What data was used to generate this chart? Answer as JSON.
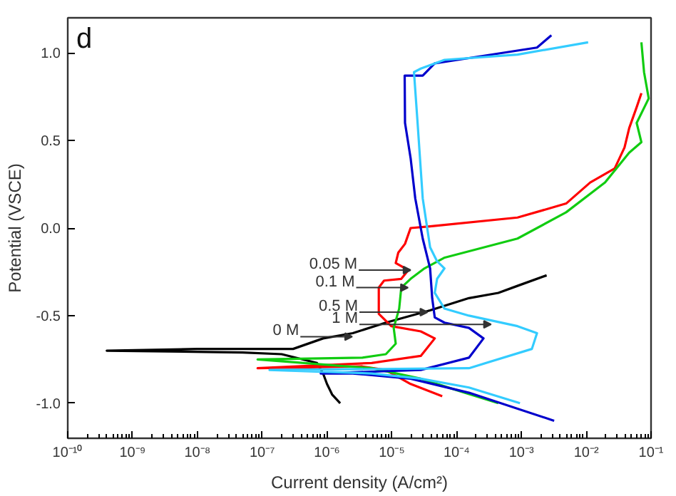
{
  "chart_data": {
    "type": "line",
    "xlabel": "Current density (A/cm²)",
    "ylabel": "Potential (VSCE)",
    "log": "x",
    "grid": false,
    "xlim": [
      1e-10,
      0.1
    ],
    "ylim": [
      -1.2,
      1.2
    ],
    "xticks": [
      {
        "value": 1e-10,
        "label": "10⁻¹⁰"
      },
      {
        "value": 1e-09,
        "label": "10⁻⁹"
      },
      {
        "value": 1e-08,
        "label": "10⁻⁸"
      },
      {
        "value": 1e-07,
        "label": "10⁻⁷"
      },
      {
        "value": 1e-06,
        "label": "10⁻⁶"
      },
      {
        "value": 1e-05,
        "label": "10⁻⁵"
      },
      {
        "value": 0.0001,
        "label": "10⁻⁴"
      },
      {
        "value": 0.001,
        "label": "10⁻³"
      },
      {
        "value": 0.01,
        "label": "10⁻²"
      },
      {
        "value": 0.1,
        "label": "10⁻¹"
      }
    ],
    "yticks": [
      {
        "value": -1.0,
        "label": "-1.0"
      },
      {
        "value": -0.5,
        "label": "-0.5"
      },
      {
        "value": 0.0,
        "label": "0.0"
      },
      {
        "value": 0.5,
        "label": "0.5"
      },
      {
        "value": 1.0,
        "label": "1.0"
      }
    ],
    "series": [
      {
        "color": "#000000",
        "x": [
          1.6e-06,
          1.2e-06,
          1e-06,
          8.7e-07,
          7e-07,
          2e-07,
          5e-08,
          4e-10,
          1e-08,
          3e-07,
          8.7e-07,
          2.5e-06,
          8.1e-06,
          3.9e-05,
          0.000155,
          0.00044,
          0.00087,
          0.00245
        ],
        "values": [
          -1.0,
          -0.95,
          -0.89,
          -0.83,
          -0.77,
          -0.72,
          -0.71,
          -0.7,
          -0.69,
          -0.69,
          -0.63,
          -0.6,
          -0.54,
          -0.47,
          -0.4,
          -0.37,
          -0.33,
          -0.27
        ]
      },
      {
        "color": "#ff0000",
        "x": [
          6e-05,
          1.95e-05,
          8e-06,
          3.5e-06,
          8.5e-08,
          4.9e-06,
          2.8e-05,
          4.6e-05,
          2.8e-05,
          9.8e-06,
          6.3e-06,
          6.3e-06,
          7.6e-06,
          1.4e-05,
          1.8e-05,
          1.15e-05,
          1.26e-05,
          1.6e-05,
          1.95e-05,
          3.9e-05,
          0.00087,
          0.0049,
          0.0115,
          0.0275,
          0.039,
          0.046,
          0.06,
          0.071
        ],
        "values": [
          -0.96,
          -0.89,
          -0.81,
          -0.79,
          -0.8,
          -0.77,
          -0.73,
          -0.63,
          -0.59,
          -0.56,
          -0.49,
          -0.34,
          -0.3,
          -0.29,
          -0.24,
          -0.2,
          -0.14,
          -0.09,
          0.0,
          0.01,
          0.06,
          0.14,
          0.26,
          0.34,
          0.46,
          0.57,
          0.69,
          0.77
        ]
      },
      {
        "color": "#11cc11",
        "x": [
          0.00044,
          0.00011,
          2.8e-05,
          4.9e-06,
          8.5e-08,
          3.5e-06,
          8.1e-06,
          1.15e-05,
          1.07e-05,
          1.3e-05,
          1.4e-05,
          1.95e-05,
          3.2e-05,
          6.4e-05,
          0.00087,
          0.0049,
          0.0195,
          0.046,
          0.071,
          0.06,
          0.092,
          0.078,
          0.071
        ],
        "values": [
          -1.0,
          -0.93,
          -0.86,
          -0.8,
          -0.75,
          -0.74,
          -0.72,
          -0.66,
          -0.57,
          -0.46,
          -0.34,
          -0.29,
          -0.23,
          -0.17,
          -0.06,
          0.09,
          0.26,
          0.43,
          0.49,
          0.6,
          0.74,
          0.89,
          1.06
        ]
      },
      {
        "color": "#0000cc",
        "x": [
          0.0032,
          0.000155,
          1.95e-05,
          2.5e-06,
          8e-07,
          2.8e-05,
          0.000155,
          0.00026,
          0.000155,
          6.5e-05,
          4.6e-05,
          4.2e-05,
          3.9e-05,
          3e-05,
          2.3e-05,
          1.95e-05,
          1.6e-05,
          1.58e-05,
          3e-05,
          4.6e-05,
          0.000155,
          0.00174,
          0.0029
        ],
        "values": [
          -1.1,
          -0.94,
          -0.86,
          -0.83,
          -0.83,
          -0.81,
          -0.74,
          -0.63,
          -0.57,
          -0.54,
          -0.51,
          -0.4,
          -0.23,
          -0.06,
          0.17,
          0.4,
          0.6,
          0.87,
          0.87,
          0.94,
          0.97,
          1.03,
          1.1
        ]
      },
      {
        "color": "#33ccff",
        "x": [
          0.00095,
          0.000155,
          2.8e-05,
          4.9e-06,
          1.3e-07,
          0.000155,
          0.00145,
          0.00174,
          0.00087,
          0.000155,
          6.5e-05,
          4.6e-05,
          5e-05,
          6.5e-05,
          5e-05,
          3.9e-05,
          3e-05,
          2.5e-05,
          2.2e-05,
          2.8e-05,
          6.5e-05,
          0.00087,
          0.0107
        ],
        "values": [
          -1.0,
          -0.91,
          -0.86,
          -0.83,
          -0.81,
          -0.8,
          -0.69,
          -0.6,
          -0.56,
          -0.5,
          -0.46,
          -0.37,
          -0.29,
          -0.23,
          -0.19,
          -0.11,
          0.17,
          0.6,
          0.89,
          0.91,
          0.96,
          0.99,
          1.06
        ]
      }
    ],
    "annotations": [
      "d",
      {
        "text": "0.05 M",
        "x": 1.95e-05,
        "y": -0.24
      },
      {
        "text": "0.1 M",
        "x": 1.78e-05,
        "y": -0.34
      },
      {
        "text": "0.5 M",
        "x": 3.55e-05,
        "y": -0.48
      },
      {
        "text": "1 M",
        "x": 0.00034,
        "y": -0.55
      },
      {
        "text": "0 M",
        "x": 2.45e-06,
        "y": -0.62
      }
    ]
  }
}
